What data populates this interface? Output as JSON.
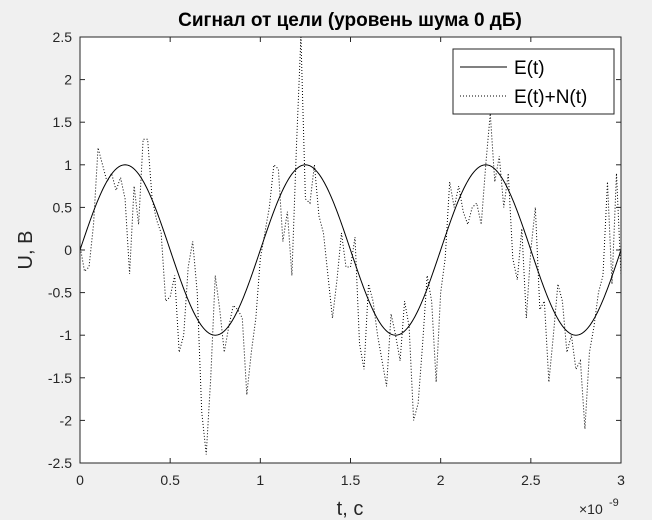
{
  "chart_data": {
    "type": "line",
    "title": "Сигнал от цели (уровень шума 0 дБ)",
    "xlabel": "t, c",
    "ylabel": "U, B",
    "x_exponent_label": "×10",
    "x_exponent_power": "-9",
    "xlim": [
      0,
      3
    ],
    "ylim": [
      -2.5,
      2.5
    ],
    "x_ticks": [
      0,
      0.5,
      1,
      1.5,
      2,
      2.5,
      3
    ],
    "x_tick_labels": [
      "0",
      "0.5",
      "1",
      "1.5",
      "2",
      "2.5",
      "3"
    ],
    "y_ticks": [
      -2.5,
      -2,
      -1.5,
      -1,
      -0.5,
      0,
      0.5,
      1,
      1.5,
      2,
      2.5
    ],
    "y_tick_labels": [
      "-2.5",
      "-2",
      "-1.5",
      "-1",
      "-0.5",
      "0",
      "0.5",
      "1",
      "1.5",
      "2",
      "2.5"
    ],
    "grid": false,
    "legend_position": "top-right",
    "series": [
      {
        "name": "E(t)",
        "style": "solid",
        "color": "#000000",
        "function": "sin(2*pi*t/1.0)",
        "x": [
          0,
          0.05,
          0.1,
          0.15,
          0.2,
          0.25,
          0.3,
          0.35,
          0.4,
          0.45,
          0.5,
          0.55,
          0.6,
          0.65,
          0.7,
          0.75,
          0.8,
          0.85,
          0.9,
          0.95,
          1.0,
          1.05,
          1.1,
          1.15,
          1.2,
          1.25,
          1.3,
          1.35,
          1.4,
          1.45,
          1.5,
          1.55,
          1.6,
          1.65,
          1.7,
          1.75,
          1.8,
          1.85,
          1.9,
          1.95,
          2.0,
          2.05,
          2.1,
          2.15,
          2.2,
          2.25,
          2.3,
          2.35,
          2.4,
          2.45,
          2.5,
          2.55,
          2.6,
          2.65,
          2.7,
          2.75,
          2.8,
          2.85,
          2.9,
          2.95,
          3.0
        ],
        "values": [
          0,
          0.309,
          0.588,
          0.809,
          0.951,
          1.0,
          0.951,
          0.809,
          0.588,
          0.309,
          0,
          -0.309,
          -0.588,
          -0.809,
          -0.951,
          -1.0,
          -0.951,
          -0.809,
          -0.588,
          -0.309,
          0,
          0.309,
          0.588,
          0.809,
          0.951,
          1.0,
          0.951,
          0.809,
          0.588,
          0.309,
          0,
          -0.309,
          -0.588,
          -0.809,
          -0.951,
          -1.0,
          -0.951,
          -0.809,
          -0.588,
          -0.309,
          0,
          0.309,
          0.588,
          0.809,
          0.951,
          1.0,
          0.951,
          0.809,
          0.588,
          0.309,
          0,
          -0.309,
          -0.588,
          -0.809,
          -0.951,
          -1.0,
          -0.951,
          -0.809,
          -0.588,
          -0.309,
          0
        ]
      },
      {
        "name": "E(t)+N(t)",
        "style": "dotted",
        "color": "#000000",
        "x": [
          0,
          0.025,
          0.05,
          0.075,
          0.1,
          0.125,
          0.15,
          0.175,
          0.2,
          0.225,
          0.25,
          0.275,
          0.3,
          0.325,
          0.35,
          0.375,
          0.4,
          0.425,
          0.45,
          0.475,
          0.5,
          0.525,
          0.55,
          0.575,
          0.6,
          0.625,
          0.65,
          0.675,
          0.7,
          0.725,
          0.75,
          0.775,
          0.8,
          0.825,
          0.85,
          0.875,
          0.9,
          0.925,
          0.95,
          0.975,
          1.0,
          1.025,
          1.05,
          1.075,
          1.1,
          1.125,
          1.15,
          1.175,
          1.2,
          1.225,
          1.25,
          1.275,
          1.3,
          1.325,
          1.35,
          1.375,
          1.4,
          1.425,
          1.45,
          1.475,
          1.5,
          1.525,
          1.55,
          1.575,
          1.6,
          1.625,
          1.65,
          1.675,
          1.7,
          1.725,
          1.75,
          1.775,
          1.8,
          1.825,
          1.85,
          1.875,
          1.9,
          1.925,
          1.95,
          1.975,
          2.0,
          2.025,
          2.05,
          2.075,
          2.1,
          2.125,
          2.15,
          2.175,
          2.2,
          2.225,
          2.25,
          2.275,
          2.3,
          2.325,
          2.35,
          2.375,
          2.4,
          2.425,
          2.45,
          2.475,
          2.5,
          2.525,
          2.55,
          2.575,
          2.6,
          2.625,
          2.65,
          2.675,
          2.7,
          2.725,
          2.75,
          2.775,
          2.8,
          2.825,
          2.85,
          2.875,
          2.9,
          2.925,
          2.95,
          2.975,
          3.0
        ],
        "values": [
          0.05,
          -0.25,
          -0.2,
          0.3,
          1.2,
          1.0,
          0.8,
          0.9,
          0.7,
          0.85,
          0.6,
          -0.28,
          0.75,
          0.3,
          1.3,
          1.3,
          0.6,
          0.35,
          0.2,
          -0.6,
          -0.55,
          -0.3,
          -1.2,
          -1.0,
          -0.2,
          0.1,
          -0.5,
          -1.9,
          -2.4,
          -1.5,
          -0.3,
          -0.7,
          -1.2,
          -0.9,
          -0.65,
          -0.7,
          -0.8,
          -1.7,
          -1.2,
          -0.8,
          -0.1,
          0.2,
          0.5,
          1.0,
          0.95,
          0.1,
          0.45,
          -0.3,
          1.2,
          2.5,
          0.6,
          0.55,
          1.0,
          0.4,
          0.2,
          -0.3,
          -0.8,
          -0.35,
          0.2,
          -0.2,
          -0.2,
          0.15,
          -1.1,
          -1.4,
          -0.4,
          -0.6,
          -1.0,
          -1.3,
          -1.6,
          -0.75,
          -1.0,
          -1.3,
          -0.6,
          -0.9,
          -2.0,
          -1.8,
          -1.1,
          -0.3,
          -0.6,
          -1.55,
          -0.5,
          -0.1,
          0.8,
          0.5,
          0.75,
          0.45,
          0.3,
          0.5,
          0.55,
          0.3,
          1.0,
          1.6,
          0.8,
          1.1,
          0.5,
          0.9,
          -0.1,
          -0.35,
          0.25,
          -0.8,
          0.0,
          0.5,
          -0.7,
          -0.6,
          -1.55,
          -1.0,
          -0.4,
          -0.6,
          -1.2,
          -1.0,
          -1.4,
          -1.3,
          -2.1,
          -1.2,
          -0.9,
          -0.5,
          -0.3,
          0.8,
          -0.4,
          0.9,
          -0.3
        ]
      }
    ]
  }
}
